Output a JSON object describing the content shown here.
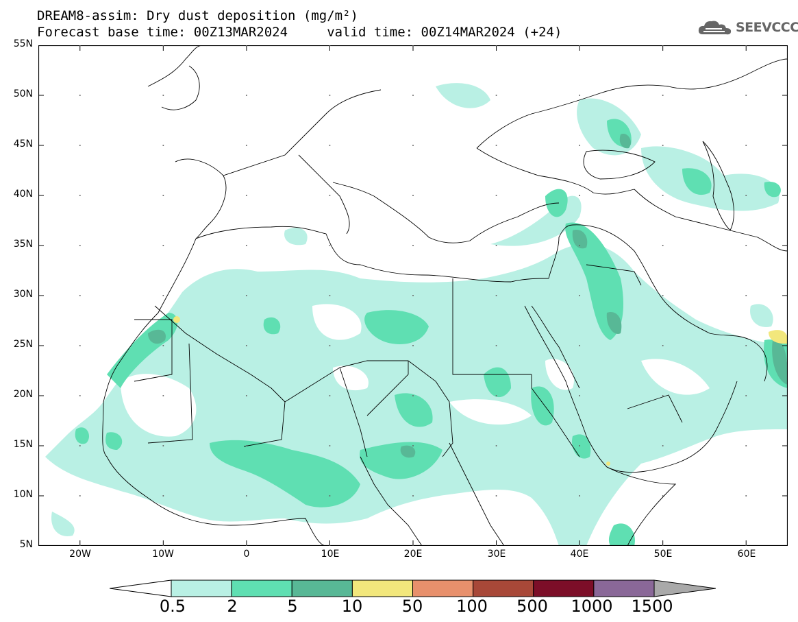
{
  "title": {
    "line1": "DREAM8-assim: Dry dust deposition (mg/m²)",
    "line2": "Forecast base time: 00Z13MAR2024     valid time: 00Z14MAR2024 (+24)"
  },
  "logo": {
    "text": "SEEVCCC"
  },
  "axes": {
    "y_labels": [
      "55N",
      "50N",
      "45N",
      "40N",
      "35N",
      "30N",
      "25N",
      "20N",
      "15N",
      "10N",
      "5N"
    ],
    "y_values": [
      55,
      50,
      45,
      40,
      35,
      30,
      25,
      20,
      15,
      10,
      5
    ],
    "x_labels": [
      "20W",
      "10W",
      "0",
      "10E",
      "20E",
      "30E",
      "40E",
      "50E",
      "60E"
    ],
    "x_values": [
      -20,
      -10,
      0,
      10,
      20,
      30,
      40,
      50,
      60
    ],
    "lon_range": [
      -25,
      65
    ],
    "lat_range": [
      5,
      55
    ]
  },
  "colorbar": {
    "labels": [
      "0.5",
      "2",
      "5",
      "10",
      "50",
      "100",
      "500",
      "1000",
      "1500"
    ],
    "colors": [
      "#b9f0e4",
      "#5fdfb2",
      "#58b896",
      "#f2e77c",
      "#e8906c",
      "#a84838",
      "#7c0e28",
      "#8a6898"
    ],
    "under_color": "#ffffff",
    "over_color": "#a9a9a9"
  },
  "colors": {
    "level1": "#b9f0e4",
    "level2": "#5fdfb2",
    "level3": "#58b896",
    "level4": "#f2e77c"
  }
}
